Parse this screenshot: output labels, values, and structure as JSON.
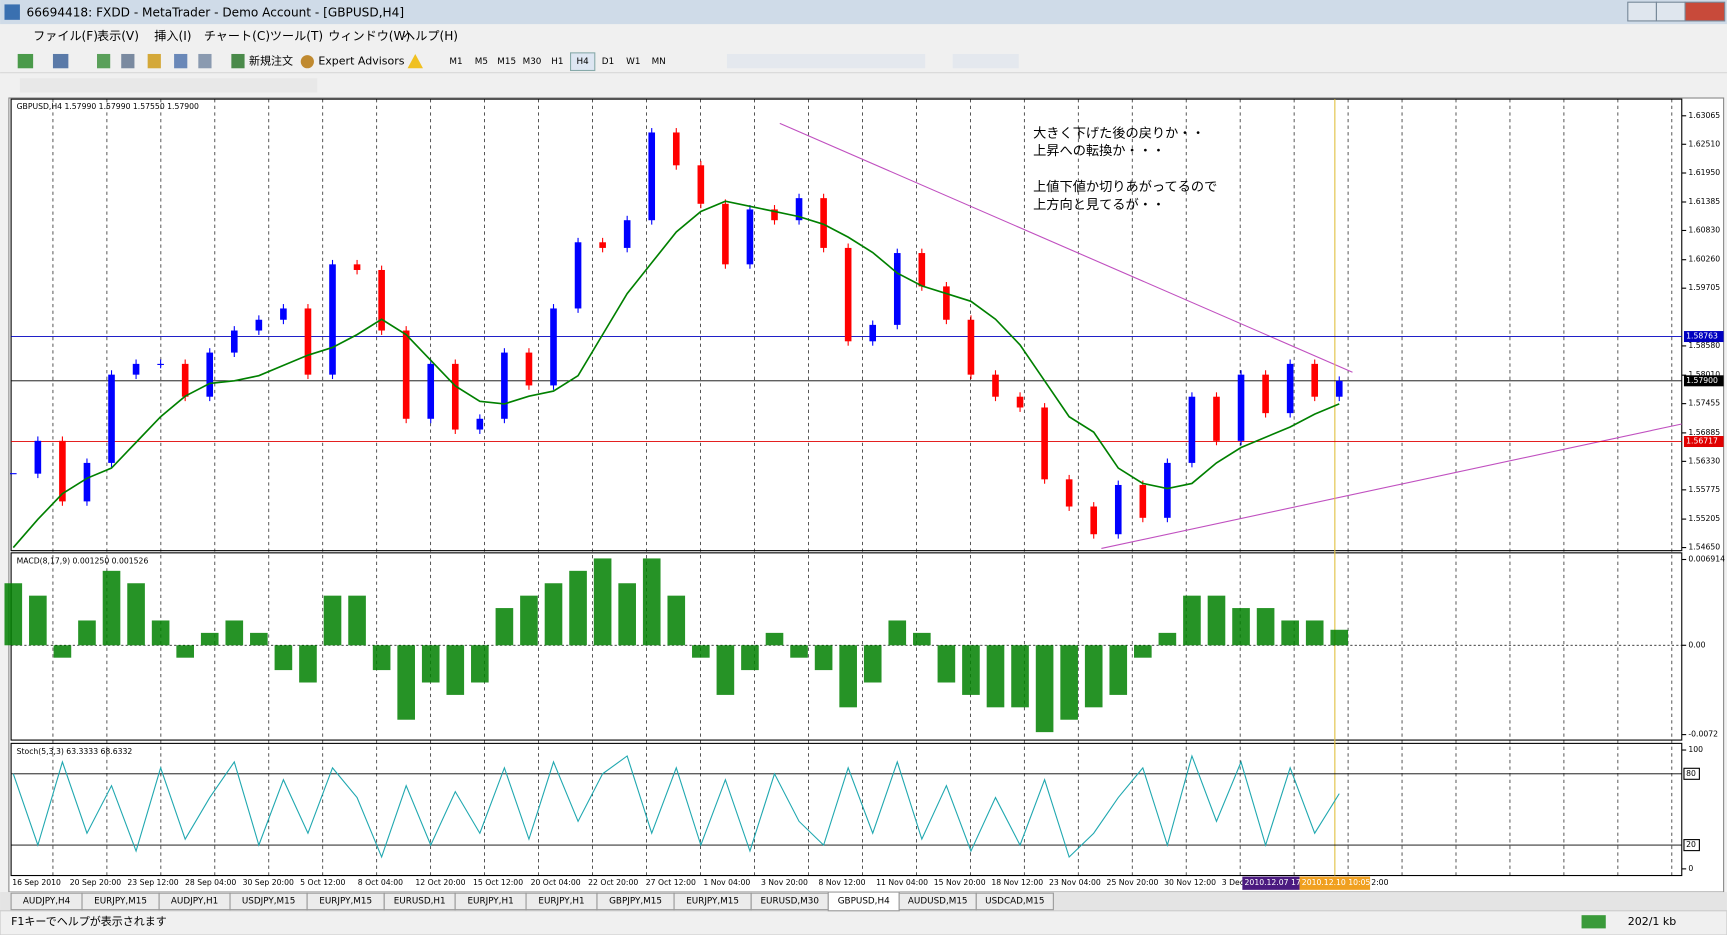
{
  "window": {
    "title": "66694418: FXDD - MetaTrader - Demo Account - [GBPUSD,H4]"
  },
  "menu": [
    "ファイル(F)",
    "表示(V)",
    "挿入(I)",
    "チャート(C)",
    "ツール(T)",
    "ウィンドウ(W)",
    "ヘルプ(H)"
  ],
  "toolbar": {
    "new_order": "新規注文",
    "expert_advisors": "Expert Advisors",
    "timeframes": [
      "M1",
      "M5",
      "M15",
      "M30",
      "H1",
      "H4",
      "D1",
      "W1",
      "MN"
    ]
  },
  "chart_data": [
    {
      "type": "candlestick",
      "title": "GBPUSD,H4 1.57990 1.57990 1.57550 1.57900",
      "up_color": "#0000ff",
      "down_color": "#ff0000",
      "values": [
        1.5609,
        1.5673,
        1.5555,
        1.563,
        1.5802,
        1.5823,
        1.5823,
        1.5759,
        1.5845,
        1.5888,
        1.5909,
        1.5931,
        1.5802,
        1.6017,
        1.6006,
        1.5888,
        1.5716,
        1.5823,
        1.5695,
        1.5716,
        1.5845,
        1.5781,
        1.5931,
        1.606,
        1.6049,
        1.6103,
        1.6274,
        1.621,
        1.6135,
        1.6017,
        1.6124,
        1.6103,
        1.6146,
        1.6049,
        1.5867,
        1.5899,
        1.6039,
        1.5974,
        1.5909,
        1.5802,
        1.5759,
        1.5738,
        1.5598,
        1.5545,
        1.5491,
        1.5587,
        1.5523,
        1.563,
        1.5759,
        1.5673,
        1.5802,
        1.5727,
        1.5823,
        1.5759,
        1.579
      ],
      "ma": {
        "color": "#008000",
        "values": [
          1.5465,
          1.552,
          1.557,
          1.56,
          1.562,
          1.567,
          1.572,
          1.576,
          1.5785,
          1.579,
          1.58,
          1.582,
          1.584,
          1.5855,
          1.588,
          1.591,
          1.588,
          1.583,
          1.578,
          1.575,
          1.5745,
          1.576,
          1.577,
          1.58,
          1.588,
          1.596,
          1.602,
          1.608,
          1.612,
          1.614,
          1.613,
          1.612,
          1.611,
          1.6095,
          1.607,
          1.604,
          1.6,
          1.5975,
          1.596,
          1.5945,
          1.591,
          1.586,
          1.579,
          1.572,
          1.569,
          1.562,
          1.559,
          1.558,
          1.559,
          1.563,
          1.566,
          1.568,
          1.57,
          1.5725,
          1.5745
        ]
      },
      "ylim": [
        1.5459,
        1.6339
      ],
      "yticks": [
        {
          "value": 1.63065,
          "label": "1.63065"
        },
        {
          "value": 1.6251,
          "label": "1.62510"
        },
        {
          "value": 1.6195,
          "label": "1.61950"
        },
        {
          "value": 1.61385,
          "label": "1.61385"
        },
        {
          "value": 1.6083,
          "label": "1.60830"
        },
        {
          "value": 1.6026,
          "label": "1.60260"
        },
        {
          "value": 1.59705,
          "label": "1.59705"
        },
        {
          "value": 1.5858,
          "label": "1.58580"
        },
        {
          "value": 1.5801,
          "label": "1.58010"
        },
        {
          "value": 1.57455,
          "label": "1.57455"
        },
        {
          "value": 1.56885,
          "label": "1.56885"
        },
        {
          "value": 1.5633,
          "label": "1.56330"
        },
        {
          "value": 1.55775,
          "label": "1.55775"
        },
        {
          "value": 1.55205,
          "label": "1.55205"
        },
        {
          "value": 1.5465,
          "label": "1.54650"
        }
      ],
      "hlines": [
        {
          "value": 1.58763,
          "label": "1.58763",
          "color": "#0000c0"
        },
        {
          "value": 1.579,
          "label": "1.57900",
          "color": "#000000"
        },
        {
          "value": 1.56717,
          "label": "1.56717",
          "color": "#e00000"
        }
      ],
      "annotations": [
        "大きく下げた後の戻りか・・",
        "上昇への転換か・・・",
        "上値下値か切りあがってるので",
        "上方向と見てるが・・"
      ]
    },
    {
      "type": "bar",
      "title": "MACD(8,17,9) 0.001250 0.001526",
      "color": "#008000",
      "values": [
        0.005,
        0.004,
        -0.001,
        0.002,
        0.006,
        0.005,
        0.002,
        -0.001,
        0.001,
        0.002,
        0.001,
        -0.002,
        -0.003,
        0.004,
        0.004,
        -0.002,
        -0.006,
        -0.003,
        -0.004,
        -0.003,
        0.003,
        0.004,
        0.005,
        0.006,
        0.007,
        0.005,
        0.007,
        0.004,
        -0.001,
        -0.004,
        -0.002,
        0.001,
        -0.001,
        -0.002,
        -0.005,
        -0.003,
        0.002,
        0.001,
        -0.003,
        -0.004,
        -0.005,
        -0.005,
        -0.007,
        -0.006,
        -0.005,
        -0.004,
        -0.001,
        0.001,
        0.004,
        0.004,
        0.003,
        0.003,
        0.002,
        0.002,
        0.00125
      ],
      "ylim": [
        -0.00764,
        0.00745
      ],
      "yticks": [
        0.006914,
        {
          "value": 0,
          "label": "0.00"
        },
        -0.0072
      ]
    },
    {
      "type": "line",
      "title": "Stoch(5,3,3) 63.3333 68.6332",
      "color": "#20a8b0",
      "values": [
        80,
        20,
        90,
        30,
        70,
        15,
        85,
        25,
        60,
        90,
        20,
        75,
        30,
        85,
        60,
        10,
        70,
        20,
        65,
        30,
        85,
        25,
        90,
        40,
        80,
        95,
        30,
        85,
        20,
        75,
        15,
        80,
        40,
        20,
        85,
        30,
        90,
        25,
        70,
        15,
        60,
        20,
        75,
        10,
        30,
        60,
        85,
        20,
        95,
        40,
        90,
        20,
        85,
        30,
        63.3333
      ],
      "ylim": [
        -5.6,
        105.6
      ],
      "yticks": [
        0,
        100
      ],
      "levels": [
        80,
        20
      ]
    }
  ],
  "time_axis": {
    "labels": [
      "16 Sep 2010",
      "20 Sep 20:00",
      "23 Sep 12:00",
      "28 Sep 04:00",
      "30 Sep 20:00",
      "5 Oct 12:00",
      "8 Oct 04:00",
      "12 Oct 20:00",
      "15 Oct 12:00",
      "20 Oct 04:00",
      "22 Oct 20:00",
      "27 Oct 12:00",
      "1 Nov 04:00",
      "3 Nov 20:00",
      "8 Nov 12:00",
      "11 Nov 04:00",
      "15 Nov 20:00",
      "18 Nov 12:00",
      "23 Nov 04:00",
      "25 Nov 20:00",
      "30 Nov 12:00",
      "3 Dec"
    ],
    "markers": [
      {
        "label": "2010.12.07 17",
        "color": "#4b1a80"
      },
      {
        "label": "2010.12.10 10:05",
        "color": "#f0a020"
      }
    ],
    "end_label": "2:00"
  },
  "tabs": [
    "AUDJPY,H4",
    "EURJPY,M15",
    "AUDJPY,H1",
    "USDJPY,M15",
    "EURJPY,M15",
    "EURUSD,H1",
    "EURJPY,H1",
    "EURJPY,H1",
    "GBPJPY,M15",
    "EURJPY,M15",
    "EURUSD,M30",
    "GBPUSD,H4",
    "AUDUSD,M15",
    "USDCAD,M15"
  ],
  "active_tab_index": 11,
  "status": {
    "help": "F1キーでヘルプが表示されます",
    "traffic": "202/1 kb"
  }
}
